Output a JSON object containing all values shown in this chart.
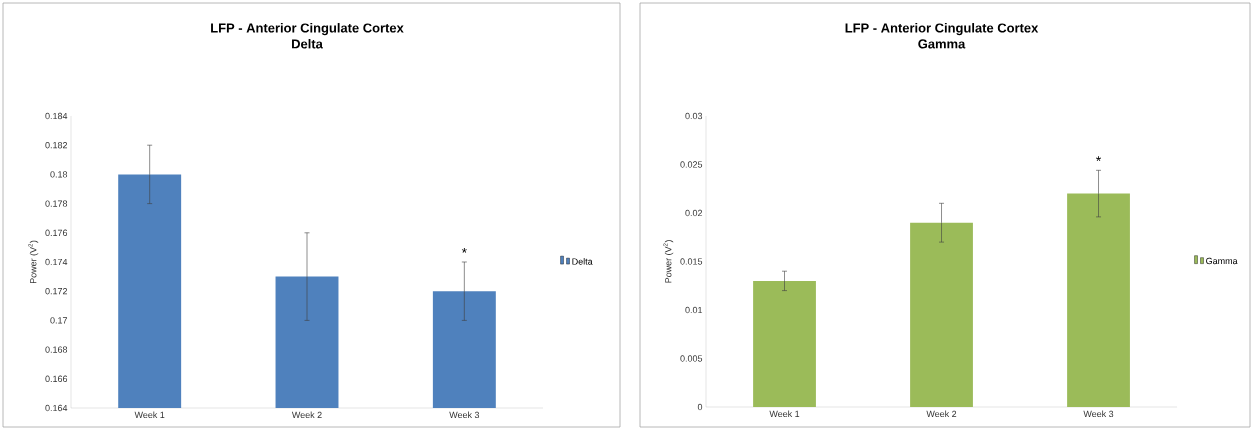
{
  "chart_data": [
    {
      "type": "bar",
      "title": "LFP - Anterior Cingulate Cortex",
      "subtitle": "Delta",
      "ylabel": "Power (V$^{2}$)",
      "categories": [
        "Week 1",
        "Week 2",
        "Week 3"
      ],
      "series": [
        {
          "name": "Delta",
          "color": "#4f81bd",
          "values": [
            0.18,
            0.173,
            0.172
          ],
          "errors": [
            0.002,
            0.003,
            0.002
          ]
        }
      ],
      "ylim": [
        0.164,
        0.184
      ],
      "yticks": [
        0.164,
        0.166,
        0.168,
        0.17,
        0.172,
        0.174,
        0.176,
        0.178,
        0.18,
        0.182,
        0.184
      ],
      "grid": false,
      "legend": "right",
      "annotations": [
        "*"
      ]
    },
    {
      "type": "bar",
      "title": "LFP - Anterior Cingulate Cortex",
      "subtitle": "Gamma",
      "ylabel": "Power (V$^{2}$)",
      "categories": [
        "Week 1",
        "Week 2",
        "Week 3"
      ],
      "series": [
        {
          "name": "Gamma",
          "color": "#9bbb59",
          "values": [
            0.013,
            0.019,
            0.022
          ],
          "errors": [
            0.001,
            0.002,
            0.0024
          ]
        }
      ],
      "ylim": [
        0,
        0.03
      ],
      "yticks": [
        0,
        0.005,
        0.01,
        0.015,
        0.02,
        0.025,
        0.03
      ],
      "grid": false,
      "legend": "right",
      "annotations": [
        "*"
      ]
    }
  ]
}
